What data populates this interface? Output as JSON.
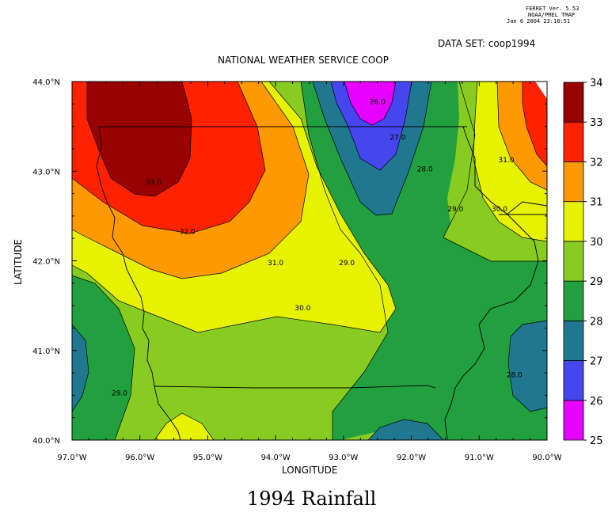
{
  "ferret_info": {
    "line1": "FERRET Ver. 5.53",
    "line2": "NOAA/PMEL TMAP",
    "line3": "Jan  6 2004 23:18:51"
  },
  "dataset_label": "DATA SET: coop1994",
  "plot_title": "NATIONAL WEATHER SERVICE COOP",
  "caption": "1994 Rainfall",
  "chart_data": {
    "type": "heatmap",
    "subtype": "filled-contour-map",
    "title": "NATIONAL WEATHER SERVICE COOP",
    "xlabel": "LONGITUDE",
    "ylabel": "LATITUDE",
    "xlim": [
      -97.0,
      -90.0
    ],
    "ylim": [
      40.0,
      44.0
    ],
    "x_ticks": [
      {
        "value": -97.0,
        "label": "97.0°W"
      },
      {
        "value": -96.0,
        "label": "96.0°W"
      },
      {
        "value": -95.0,
        "label": "95.0°W"
      },
      {
        "value": -94.0,
        "label": "94.0°W"
      },
      {
        "value": -93.0,
        "label": "93.0°W"
      },
      {
        "value": -92.0,
        "label": "92.0°W"
      },
      {
        "value": -91.0,
        "label": "91.0°W"
      },
      {
        "value": -90.0,
        "label": "90.0°W"
      }
    ],
    "y_ticks": [
      {
        "value": 40.0,
        "label": "40.0°N"
      },
      {
        "value": 41.0,
        "label": "41.0°N"
      },
      {
        "value": 42.0,
        "label": "42.0°N"
      },
      {
        "value": 43.0,
        "label": "43.0°N"
      },
      {
        "value": 44.0,
        "label": "44.0°N"
      }
    ],
    "colorbar": {
      "levels": [
        25,
        26,
        27,
        28,
        29,
        30,
        31,
        32,
        33,
        34
      ],
      "labels": [
        "25",
        "26",
        "27",
        "28",
        "29",
        "30",
        "31",
        "32",
        "33",
        "34"
      ],
      "colors": [
        "#e600ff",
        "#4646ee",
        "#1f7890",
        "#22a040",
        "#88cc22",
        "#e6f200",
        "#ff9900",
        "#ff2200",
        "#990000"
      ]
    },
    "contour_labels": [
      {
        "text": "33.0",
        "lon": -95.8,
        "lat": 42.85
      },
      {
        "text": "32.0",
        "lon": -95.3,
        "lat": 42.3
      },
      {
        "text": "31.0",
        "lon": -94.0,
        "lat": 41.95
      },
      {
        "text": "30.0",
        "lon": -93.6,
        "lat": 41.45
      },
      {
        "text": "29.0",
        "lon": -92.95,
        "lat": 41.95
      },
      {
        "text": "29.0",
        "lon": -91.35,
        "lat": 42.55
      },
      {
        "text": "29.0",
        "lon": -96.3,
        "lat": 40.5
      },
      {
        "text": "28.0",
        "lon": -91.8,
        "lat": 43.0
      },
      {
        "text": "28.0",
        "lon": -90.48,
        "lat": 40.7
      },
      {
        "text": "27.0",
        "lon": -92.2,
        "lat": 43.35
      },
      {
        "text": "26.0",
        "lon": -92.5,
        "lat": 43.75
      },
      {
        "text": "31.0",
        "lon": -90.6,
        "lat": 43.1
      },
      {
        "text": "30.0",
        "lon": -90.7,
        "lat": 42.55
      }
    ],
    "grid": false,
    "legend": "right"
  }
}
